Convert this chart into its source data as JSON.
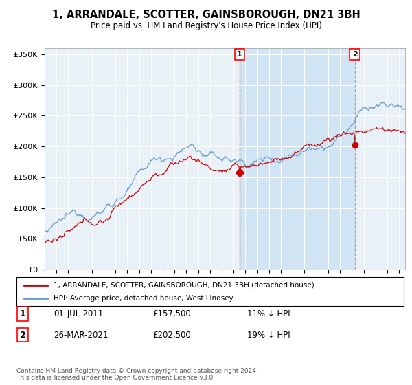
{
  "title": "1, ARRANDALE, SCOTTER, GAINSBOROUGH, DN21 3BH",
  "subtitle": "Price paid vs. HM Land Registry's House Price Index (HPI)",
  "ylabel_ticks": [
    "£0",
    "£50K",
    "£100K",
    "£150K",
    "£200K",
    "£250K",
    "£300K",
    "£350K"
  ],
  "ytick_values": [
    0,
    50000,
    100000,
    150000,
    200000,
    250000,
    300000,
    350000
  ],
  "ylim": [
    0,
    360000
  ],
  "xlim_start": 1995.0,
  "xlim_end": 2025.5,
  "hpi_color": "#6699CC",
  "price_color": "#CC0000",
  "bg_color": "#E8F0F8",
  "highlight_color": "#D0E4F4",
  "sale1": {
    "date": 2011.5,
    "price": 157500,
    "label": "1"
  },
  "sale2": {
    "date": 2021.25,
    "price": 202500,
    "label": "2"
  },
  "legend_line1": "1, ARRANDALE, SCOTTER, GAINSBOROUGH, DN21 3BH (detached house)",
  "legend_line2": "HPI: Average price, detached house, West Lindsey",
  "annotation1_date": "01-JUL-2011",
  "annotation1_price": "£157,500",
  "annotation1_info": "11% ↓ HPI",
  "annotation2_date": "26-MAR-2021",
  "annotation2_price": "£202,500",
  "annotation2_info": "19% ↓ HPI",
  "footer": "Contains HM Land Registry data © Crown copyright and database right 2024.\nThis data is licensed under the Open Government Licence v3.0."
}
